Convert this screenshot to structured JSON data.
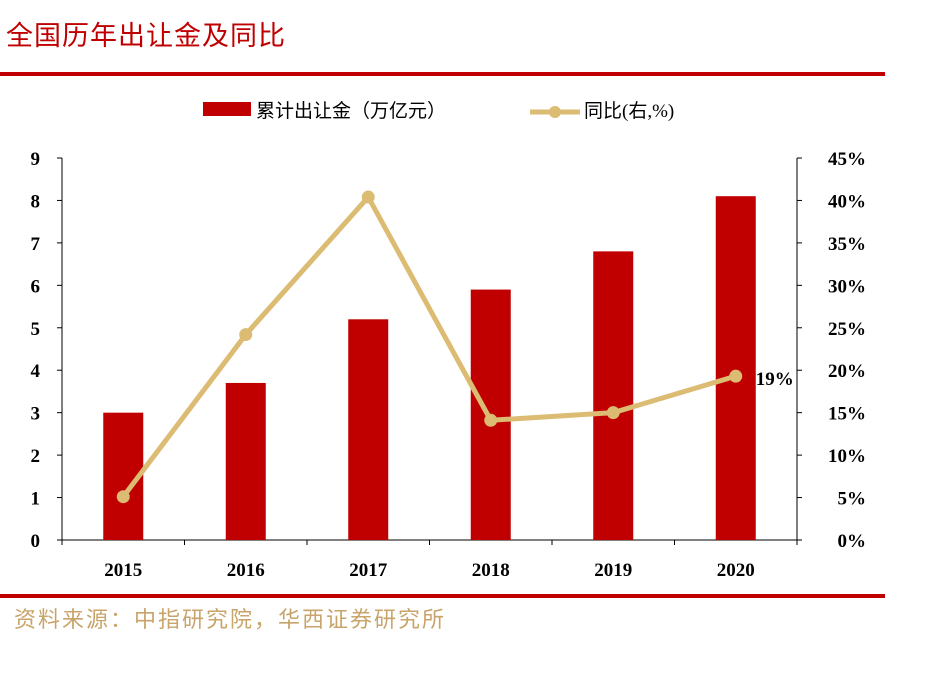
{
  "title": "全国历年出让金及同比",
  "source": "资料来源：中指研究院，华西证券研究所",
  "chart_data": {
    "type": "bar+line",
    "categories": [
      "2015",
      "2016",
      "2017",
      "2018",
      "2019",
      "2020"
    ],
    "series": [
      {
        "name": "累计出让金（万亿元）",
        "type": "bar",
        "axis": "left",
        "color": "#c00000",
        "values": [
          3.0,
          3.7,
          5.2,
          5.9,
          6.8,
          8.1
        ]
      },
      {
        "name": "同比(右,%)",
        "type": "line",
        "axis": "right",
        "color": "#dcbb72",
        "values": [
          5.1,
          24.2,
          40.4,
          14.1,
          15.0,
          19.3
        ]
      }
    ],
    "ylim_left": [
      0,
      9
    ],
    "yticks_left": [
      "0",
      "1",
      "2",
      "3",
      "4",
      "5",
      "6",
      "7",
      "8",
      "9"
    ],
    "ylim_right": [
      0,
      45
    ],
    "yticks_right": [
      "0%",
      "5%",
      "10%",
      "15%",
      "20%",
      "25%",
      "30%",
      "35%",
      "40%",
      "45%"
    ],
    "annotations": [
      {
        "category": "2020",
        "text": "19%"
      }
    ],
    "legend": "top",
    "grid": false
  }
}
